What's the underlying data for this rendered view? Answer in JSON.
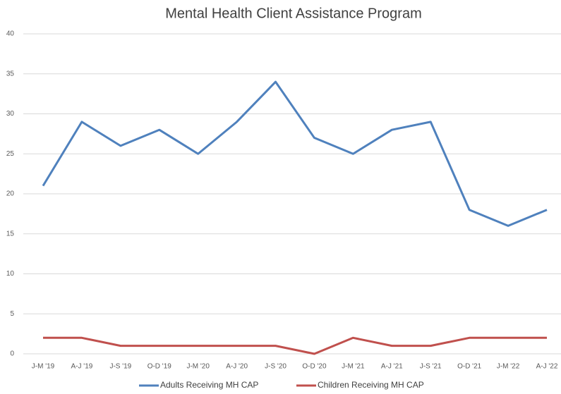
{
  "chart_data": {
    "type": "line",
    "title": "Mental Health Client Assistance Program",
    "categories": [
      "J-M '19",
      "A-J '19",
      "J-S '19",
      "O-D '19",
      "J-M '20",
      "A-J '20",
      "J-S '20",
      "O-D '20",
      "J-M '21",
      "A-J '21",
      "J-S '21",
      "O-D '21",
      "J-M '22",
      "A-J '22"
    ],
    "series": [
      {
        "name": "Adults Receiving MH CAP",
        "color": "#4f81bd",
        "values": [
          21,
          29,
          26,
          28,
          25,
          29,
          34,
          27,
          25,
          28,
          29,
          18,
          16,
          18
        ]
      },
      {
        "name": "Children Receiving MH CAP",
        "color": "#c0504d",
        "values": [
          2,
          2,
          1,
          1,
          1,
          1,
          1,
          0,
          2,
          1,
          1,
          2,
          2,
          2
        ]
      }
    ],
    "ylim": [
      0,
      40
    ],
    "yticks": [
      0,
      5,
      10,
      15,
      20,
      25,
      30,
      35,
      40
    ],
    "grid": true,
    "legend": "bottom"
  }
}
